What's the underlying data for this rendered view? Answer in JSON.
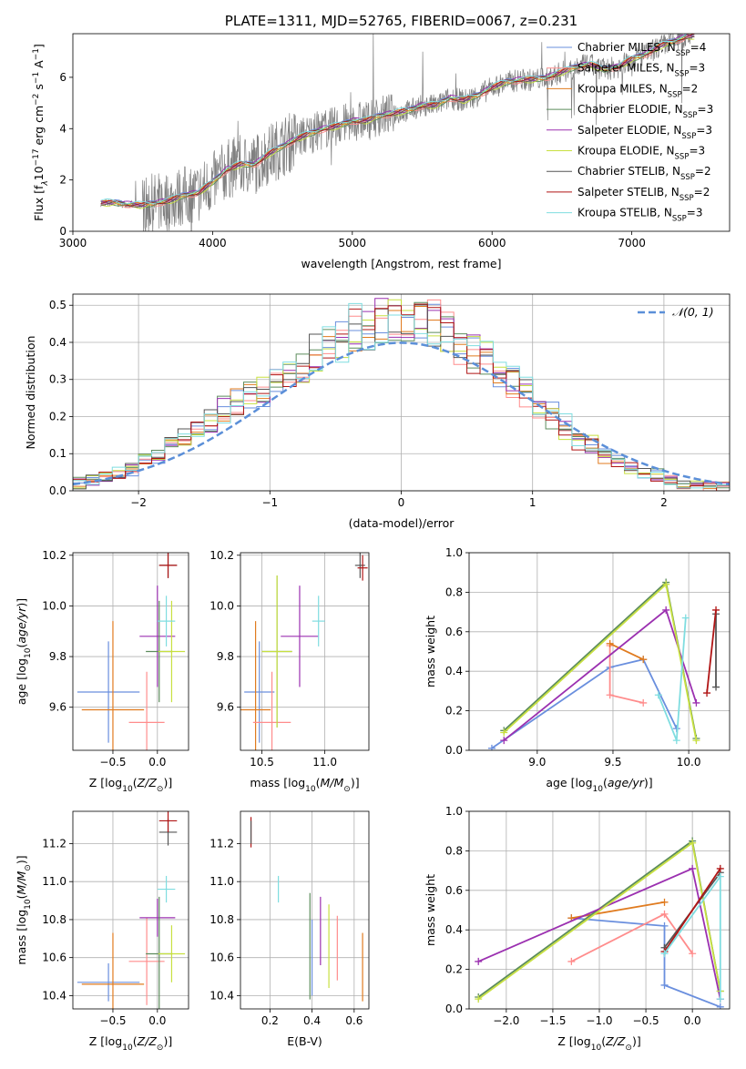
{
  "colors": {
    "Chabrier MILES": "#6a8fde",
    "Salpeter MILES": "#ff8c8c",
    "Kroupa MILES": "#e07b1f",
    "Chabrier ELODIE": "#5c8c5c",
    "Salpeter ELODIE": "#9b30b0",
    "Kroupa ELODIE": "#c8e040",
    "Chabrier STELIB": "#555555",
    "Salpeter STELIB": "#b01515",
    "Kroupa STELIB": "#7fdde0",
    "observed": "#808080",
    "normal": "#5b8fd8"
  },
  "chart_data": [
    {
      "id": "spectrum",
      "type": "line",
      "title": "PLATE=1311, MJD=52765, FIBERID=0067, z=0.231",
      "xlabel": "wavelength [Angstrom, rest frame]",
      "ylabel": "Flux [f_λ 10^-17 erg cm^-2 s^-1 A^-1]",
      "xlim": [
        3000,
        7700
      ],
      "ylim": [
        0,
        7.7
      ],
      "xticks": [
        3000,
        4000,
        5000,
        6000,
        7000
      ],
      "yticks": [
        0,
        2,
        4,
        6
      ],
      "grid": false,
      "legend": "top-right",
      "legend_entries": [
        {
          "name": "Chabrier MILES",
          "nssp": "4"
        },
        {
          "name": "Salpeter MILES",
          "nssp": "3"
        },
        {
          "name": "Kroupa MILES",
          "nssp": "2"
        },
        {
          "name": "Chabrier ELODIE",
          "nssp": "3"
        },
        {
          "name": "Salpeter ELODIE",
          "nssp": "3"
        },
        {
          "name": "Kroupa ELODIE",
          "nssp": "3"
        },
        {
          "name": "Chabrier STELIB",
          "nssp": "2"
        },
        {
          "name": "Salpeter STELIB",
          "nssp": "2"
        },
        {
          "name": "Kroupa STELIB",
          "nssp": "3"
        }
      ],
      "model_curve": {
        "x": [
          3200,
          3300,
          3400,
          3500,
          3600,
          3700,
          3800,
          3900,
          4000,
          4100,
          4200,
          4300,
          4400,
          4500,
          4600,
          4700,
          4800,
          4900,
          5000,
          5100,
          5200,
          5300,
          5400,
          5500,
          5600,
          5700,
          5800,
          5900,
          6000,
          6100,
          6200,
          6300,
          6400,
          6500,
          6600,
          6700,
          6800,
          6900,
          7000,
          7100,
          7200,
          7300,
          7400
        ],
        "y": [
          1.1,
          1.1,
          1.05,
          1.0,
          1.1,
          1.2,
          1.4,
          1.5,
          1.9,
          2.4,
          2.6,
          2.6,
          3.0,
          3.3,
          3.6,
          3.8,
          4.0,
          4.1,
          4.3,
          4.3,
          4.5,
          4.6,
          4.7,
          4.9,
          4.9,
          5.2,
          5.1,
          5.3,
          5.6,
          5.8,
          5.9,
          5.9,
          6.0,
          6.2,
          6.4,
          6.5,
          6.3,
          6.4,
          6.7,
          6.9,
          7.2,
          7.4,
          7.6
        ]
      }
    },
    {
      "id": "residuals",
      "type": "bar",
      "xlabel": "(data-model)/error",
      "ylabel": "Normed distribution",
      "xlim": [
        -2.5,
        2.5
      ],
      "ylim": [
        0,
        0.53
      ],
      "xticks": [
        -2,
        -1,
        0,
        1,
        2
      ],
      "yticks": [
        0.0,
        0.1,
        0.2,
        0.3,
        0.4,
        0.5
      ],
      "grid": true,
      "legend": "top-right",
      "legend_label": "𝒩(0, 1)",
      "bin_width": 0.1,
      "bin_centers": [
        -2.45,
        -2.35,
        -2.25,
        -2.15,
        -2.05,
        -1.95,
        -1.85,
        -1.75,
        -1.65,
        -1.55,
        -1.45,
        -1.35,
        -1.25,
        -1.15,
        -1.05,
        -0.95,
        -0.85,
        -0.75,
        -0.65,
        -0.55,
        -0.45,
        -0.35,
        -0.25,
        -0.15,
        -0.05,
        0.05,
        0.15,
        0.25,
        0.35,
        0.45,
        0.55,
        0.65,
        0.75,
        0.85,
        0.95,
        1.05,
        1.15,
        1.25,
        1.35,
        1.45,
        1.55,
        1.65,
        1.75,
        1.85,
        1.95,
        2.05,
        2.15,
        2.25,
        2.35,
        2.45
      ],
      "envelope": [
        0.02,
        0.03,
        0.04,
        0.05,
        0.06,
        0.08,
        0.1,
        0.12,
        0.14,
        0.16,
        0.19,
        0.21,
        0.23,
        0.25,
        0.27,
        0.3,
        0.32,
        0.34,
        0.37,
        0.39,
        0.41,
        0.43,
        0.44,
        0.45,
        0.45,
        0.45,
        0.45,
        0.44,
        0.42,
        0.4,
        0.38,
        0.35,
        0.32,
        0.29,
        0.26,
        0.23,
        0.2,
        0.17,
        0.14,
        0.12,
        0.1,
        0.08,
        0.06,
        0.05,
        0.04,
        0.03,
        0.02,
        0.02,
        0.01,
        0.01
      ]
    },
    {
      "id": "age-vs-Z",
      "type": "scatter",
      "xlabel": "Z [log10(Z/Z⊙)]",
      "ylabel": "age  [log10(age/yr)]",
      "xlim": [
        -0.95,
        0.35
      ],
      "ylim": [
        9.43,
        10.21
      ],
      "xticks": [
        -0.5,
        0.0
      ],
      "yticks": [
        9.6,
        9.8,
        10.0,
        10.2
      ],
      "grid": true,
      "points": [
        {
          "model": "Chabrier MILES",
          "x": -0.55,
          "y": 9.66,
          "xerr": 0.35,
          "yerr": 0.2
        },
        {
          "model": "Kroupa MILES",
          "x": -0.5,
          "y": 9.59,
          "xerr": 0.35,
          "yerr": 0.35
        },
        {
          "model": "Salpeter MILES",
          "x": -0.12,
          "y": 9.54,
          "xerr": 0.2,
          "yerr": 0.2
        },
        {
          "model": "Salpeter ELODIE",
          "x": 0.0,
          "y": 9.88,
          "xerr": 0.2,
          "yerr": 0.2
        },
        {
          "model": "Chabrier ELODIE",
          "x": 0.02,
          "y": 9.82,
          "xerr": 0.15,
          "yerr": 0.2
        },
        {
          "model": "Kroupa ELODIE",
          "x": 0.16,
          "y": 9.82,
          "xerr": 0.15,
          "yerr": 0.2
        },
        {
          "model": "Kroupa STELIB",
          "x": 0.1,
          "y": 9.94,
          "xerr": 0.1,
          "yerr": 0.1
        },
        {
          "model": "Chabrier STELIB",
          "x": 0.12,
          "y": 10.16,
          "xerr": 0.1,
          "yerr": 0.05
        },
        {
          "model": "Salpeter STELIB",
          "x": 0.12,
          "y": 10.16,
          "xerr": 0.1,
          "yerr": 0.05
        }
      ]
    },
    {
      "id": "age-vs-mass",
      "type": "scatter",
      "xlabel": "mass [log10(M/M⊙)]",
      "ylabel": "",
      "xlim": [
        10.33,
        11.35
      ],
      "ylim": [
        9.43,
        10.21
      ],
      "xticks": [
        10.5,
        11.0
      ],
      "yticks": [
        9.6,
        9.8,
        10.0,
        10.2
      ],
      "grid": true,
      "points": [
        {
          "model": "Chabrier MILES",
          "x": 10.48,
          "y": 9.66,
          "xerr": 0.12,
          "yerr": 0.2
        },
        {
          "model": "Kroupa MILES",
          "x": 10.45,
          "y": 9.59,
          "xerr": 0.12,
          "yerr": 0.35
        },
        {
          "model": "Salpeter MILES",
          "x": 10.58,
          "y": 9.54,
          "xerr": 0.15,
          "yerr": 0.2
        },
        {
          "model": "Salpeter ELODIE",
          "x": 10.8,
          "y": 9.88,
          "xerr": 0.15,
          "yerr": 0.2
        },
        {
          "model": "Chabrier ELODIE",
          "x": 10.62,
          "y": 9.82,
          "xerr": 0.12,
          "yerr": 0.3
        },
        {
          "model": "Kroupa ELODIE",
          "x": 10.62,
          "y": 9.82,
          "xerr": 0.12,
          "yerr": 0.3
        },
        {
          "model": "Kroupa STELIB",
          "x": 10.95,
          "y": 9.94,
          "xerr": 0.05,
          "yerr": 0.1
        },
        {
          "model": "Chabrier STELIB",
          "x": 11.28,
          "y": 10.16,
          "xerr": 0.04,
          "yerr": 0.05
        },
        {
          "model": "Salpeter STELIB",
          "x": 11.3,
          "y": 10.15,
          "xerr": 0.04,
          "yerr": 0.05
        }
      ]
    },
    {
      "id": "weight-vs-age",
      "type": "line",
      "xlabel": "age  [log10(age/yr)]",
      "ylabel": "mass weight",
      "xlim": [
        8.55,
        10.27
      ],
      "ylim": [
        0.0,
        1.0
      ],
      "xticks": [
        9.0,
        9.5,
        10.0
      ],
      "yticks": [
        0.0,
        0.2,
        0.4,
        0.6,
        0.8,
        1.0
      ],
      "grid": true,
      "series": [
        {
          "model": "Chabrier MILES",
          "x": [
            8.7,
            9.48,
            9.7,
            9.92
          ],
          "y": [
            0.01,
            0.42,
            0.46,
            0.11
          ]
        },
        {
          "model": "Salpeter MILES",
          "x": [
            9.48,
            9.48,
            9.7
          ],
          "y": [
            0.53,
            0.28,
            0.24
          ]
        },
        {
          "model": "Kroupa MILES",
          "x": [
            9.48,
            9.7
          ],
          "y": [
            0.54,
            0.46
          ]
        },
        {
          "model": "Chabrier ELODIE",
          "x": [
            8.78,
            9.85,
            10.05
          ],
          "y": [
            0.1,
            0.85,
            0.06
          ]
        },
        {
          "model": "Salpeter ELODIE",
          "x": [
            8.78,
            9.85,
            10.05
          ],
          "y": [
            0.05,
            0.71,
            0.24
          ]
        },
        {
          "model": "Kroupa ELODIE",
          "x": [
            8.78,
            9.85,
            10.05
          ],
          "y": [
            0.09,
            0.84,
            0.05
          ]
        },
        {
          "model": "Chabrier STELIB",
          "x": [
            10.18,
            10.18
          ],
          "y": [
            0.32,
            0.69
          ]
        },
        {
          "model": "Salpeter STELIB",
          "x": [
            10.12,
            10.18
          ],
          "y": [
            0.29,
            0.71
          ]
        },
        {
          "model": "Kroupa STELIB",
          "x": [
            9.8,
            9.92,
            9.98
          ],
          "y": [
            0.28,
            0.05,
            0.67
          ]
        }
      ]
    },
    {
      "id": "mass-vs-Z",
      "type": "scatter",
      "xlabel": "Z [log10(Z/Z⊙)]",
      "ylabel": "mass [log10(M/M⊙)]",
      "xlim": [
        -0.95,
        0.35
      ],
      "ylim": [
        10.33,
        11.37
      ],
      "xticks": [
        -0.5,
        0.0
      ],
      "yticks": [
        10.4,
        10.6,
        10.8,
        11.0,
        11.2
      ],
      "grid": true,
      "points": [
        {
          "model": "Chabrier MILES",
          "x": -0.55,
          "y": 10.47,
          "xerr": 0.35,
          "yerr": 0.1
        },
        {
          "model": "Kroupa MILES",
          "x": -0.5,
          "y": 10.46,
          "xerr": 0.35,
          "yerr": 0.27
        },
        {
          "model": "Salpeter MILES",
          "x": -0.12,
          "y": 10.58,
          "xerr": 0.2,
          "yerr": 0.23
        },
        {
          "model": "Salpeter ELODIE",
          "x": 0.0,
          "y": 10.81,
          "xerr": 0.2,
          "yerr": 0.1
        },
        {
          "model": "Chabrier ELODIE",
          "x": 0.02,
          "y": 10.62,
          "xerr": 0.15,
          "yerr": 0.3
        },
        {
          "model": "Kroupa ELODIE",
          "x": 0.16,
          "y": 10.62,
          "xerr": 0.15,
          "yerr": 0.15
        },
        {
          "model": "Kroupa STELIB",
          "x": 0.1,
          "y": 10.96,
          "xerr": 0.1,
          "yerr": 0.07
        },
        {
          "model": "Chabrier STELIB",
          "x": 0.12,
          "y": 11.26,
          "xerr": 0.1,
          "yerr": 0.07
        },
        {
          "model": "Salpeter STELIB",
          "x": 0.12,
          "y": 11.32,
          "xerr": 0.1,
          "yerr": 0.06
        }
      ]
    },
    {
      "id": "mass-vs-EBV",
      "type": "scatter",
      "xlabel": "E(B-V)",
      "ylabel": "",
      "xlim": [
        0.06,
        0.67
      ],
      "ylim": [
        10.33,
        11.37
      ],
      "xticks": [
        0.2,
        0.4,
        0.6
      ],
      "yticks": [
        10.4,
        10.6,
        10.8,
        11.0,
        11.2
      ],
      "grid": true,
      "points": [
        {
          "model": "Salpeter STELIB",
          "x": 0.11,
          "y": 11.26,
          "xerr": 0,
          "yerr": 0.08
        },
        {
          "model": "Chabrier STELIB",
          "x": 0.11,
          "y": 11.26,
          "xerr": 0,
          "yerr": 0.06
        },
        {
          "model": "Kroupa STELIB",
          "x": 0.24,
          "y": 10.96,
          "xerr": 0,
          "yerr": 0.07
        },
        {
          "model": "Chabrier ELODIE",
          "x": 0.39,
          "y": 10.66,
          "xerr": 0,
          "yerr": 0.28
        },
        {
          "model": "Chabrier MILES",
          "x": 0.4,
          "y": 10.6,
          "xerr": 0,
          "yerr": 0.2
        },
        {
          "model": "Salpeter ELODIE",
          "x": 0.44,
          "y": 10.74,
          "xerr": 0,
          "yerr": 0.18
        },
        {
          "model": "Kroupa ELODIE",
          "x": 0.48,
          "y": 10.66,
          "xerr": 0,
          "yerr": 0.22
        },
        {
          "model": "Salpeter MILES",
          "x": 0.52,
          "y": 10.65,
          "xerr": 0,
          "yerr": 0.17
        },
        {
          "model": "Kroupa MILES",
          "x": 0.64,
          "y": 10.55,
          "xerr": 0,
          "yerr": 0.18
        }
      ]
    },
    {
      "id": "weight-vs-Z",
      "type": "line",
      "xlabel": "Z [log10(Z/Z⊙)]",
      "ylabel": "mass weight",
      "xlim": [
        -2.4,
        0.4
      ],
      "ylim": [
        0.0,
        1.0
      ],
      "xticks": [
        -2.0,
        -1.5,
        -1.0,
        -0.5,
        0.0
      ],
      "yticks": [
        0.0,
        0.2,
        0.4,
        0.6,
        0.8,
        1.0
      ],
      "grid": true,
      "series": [
        {
          "model": "Chabrier MILES",
          "x": [
            -1.3,
            -0.3,
            -0.3,
            0.3
          ],
          "y": [
            0.46,
            0.42,
            0.12,
            0.01
          ]
        },
        {
          "model": "Salpeter MILES",
          "x": [
            -1.3,
            -0.3,
            0.0
          ],
          "y": [
            0.24,
            0.48,
            0.28
          ]
        },
        {
          "model": "Kroupa MILES",
          "x": [
            -1.3,
            -0.3
          ],
          "y": [
            0.46,
            0.54
          ]
        },
        {
          "model": "Chabrier ELODIE",
          "x": [
            -2.3,
            0.0,
            0.3
          ],
          "y": [
            0.06,
            0.85,
            0.09
          ]
        },
        {
          "model": "Salpeter ELODIE",
          "x": [
            -2.3,
            0.0,
            0.3
          ],
          "y": [
            0.24,
            0.71,
            0.05
          ]
        },
        {
          "model": "Kroupa ELODIE",
          "x": [
            -2.3,
            0.0,
            0.3
          ],
          "y": [
            0.05,
            0.84,
            0.09
          ]
        },
        {
          "model": "Chabrier STELIB",
          "x": [
            -0.3,
            0.3
          ],
          "y": [
            0.31,
            0.69
          ]
        },
        {
          "model": "Salpeter STELIB",
          "x": [
            -0.3,
            0.3
          ],
          "y": [
            0.29,
            0.71
          ]
        },
        {
          "model": "Kroupa STELIB",
          "x": [
            -0.3,
            0.3,
            0.3
          ],
          "y": [
            0.28,
            0.67,
            0.05
          ]
        }
      ]
    }
  ]
}
